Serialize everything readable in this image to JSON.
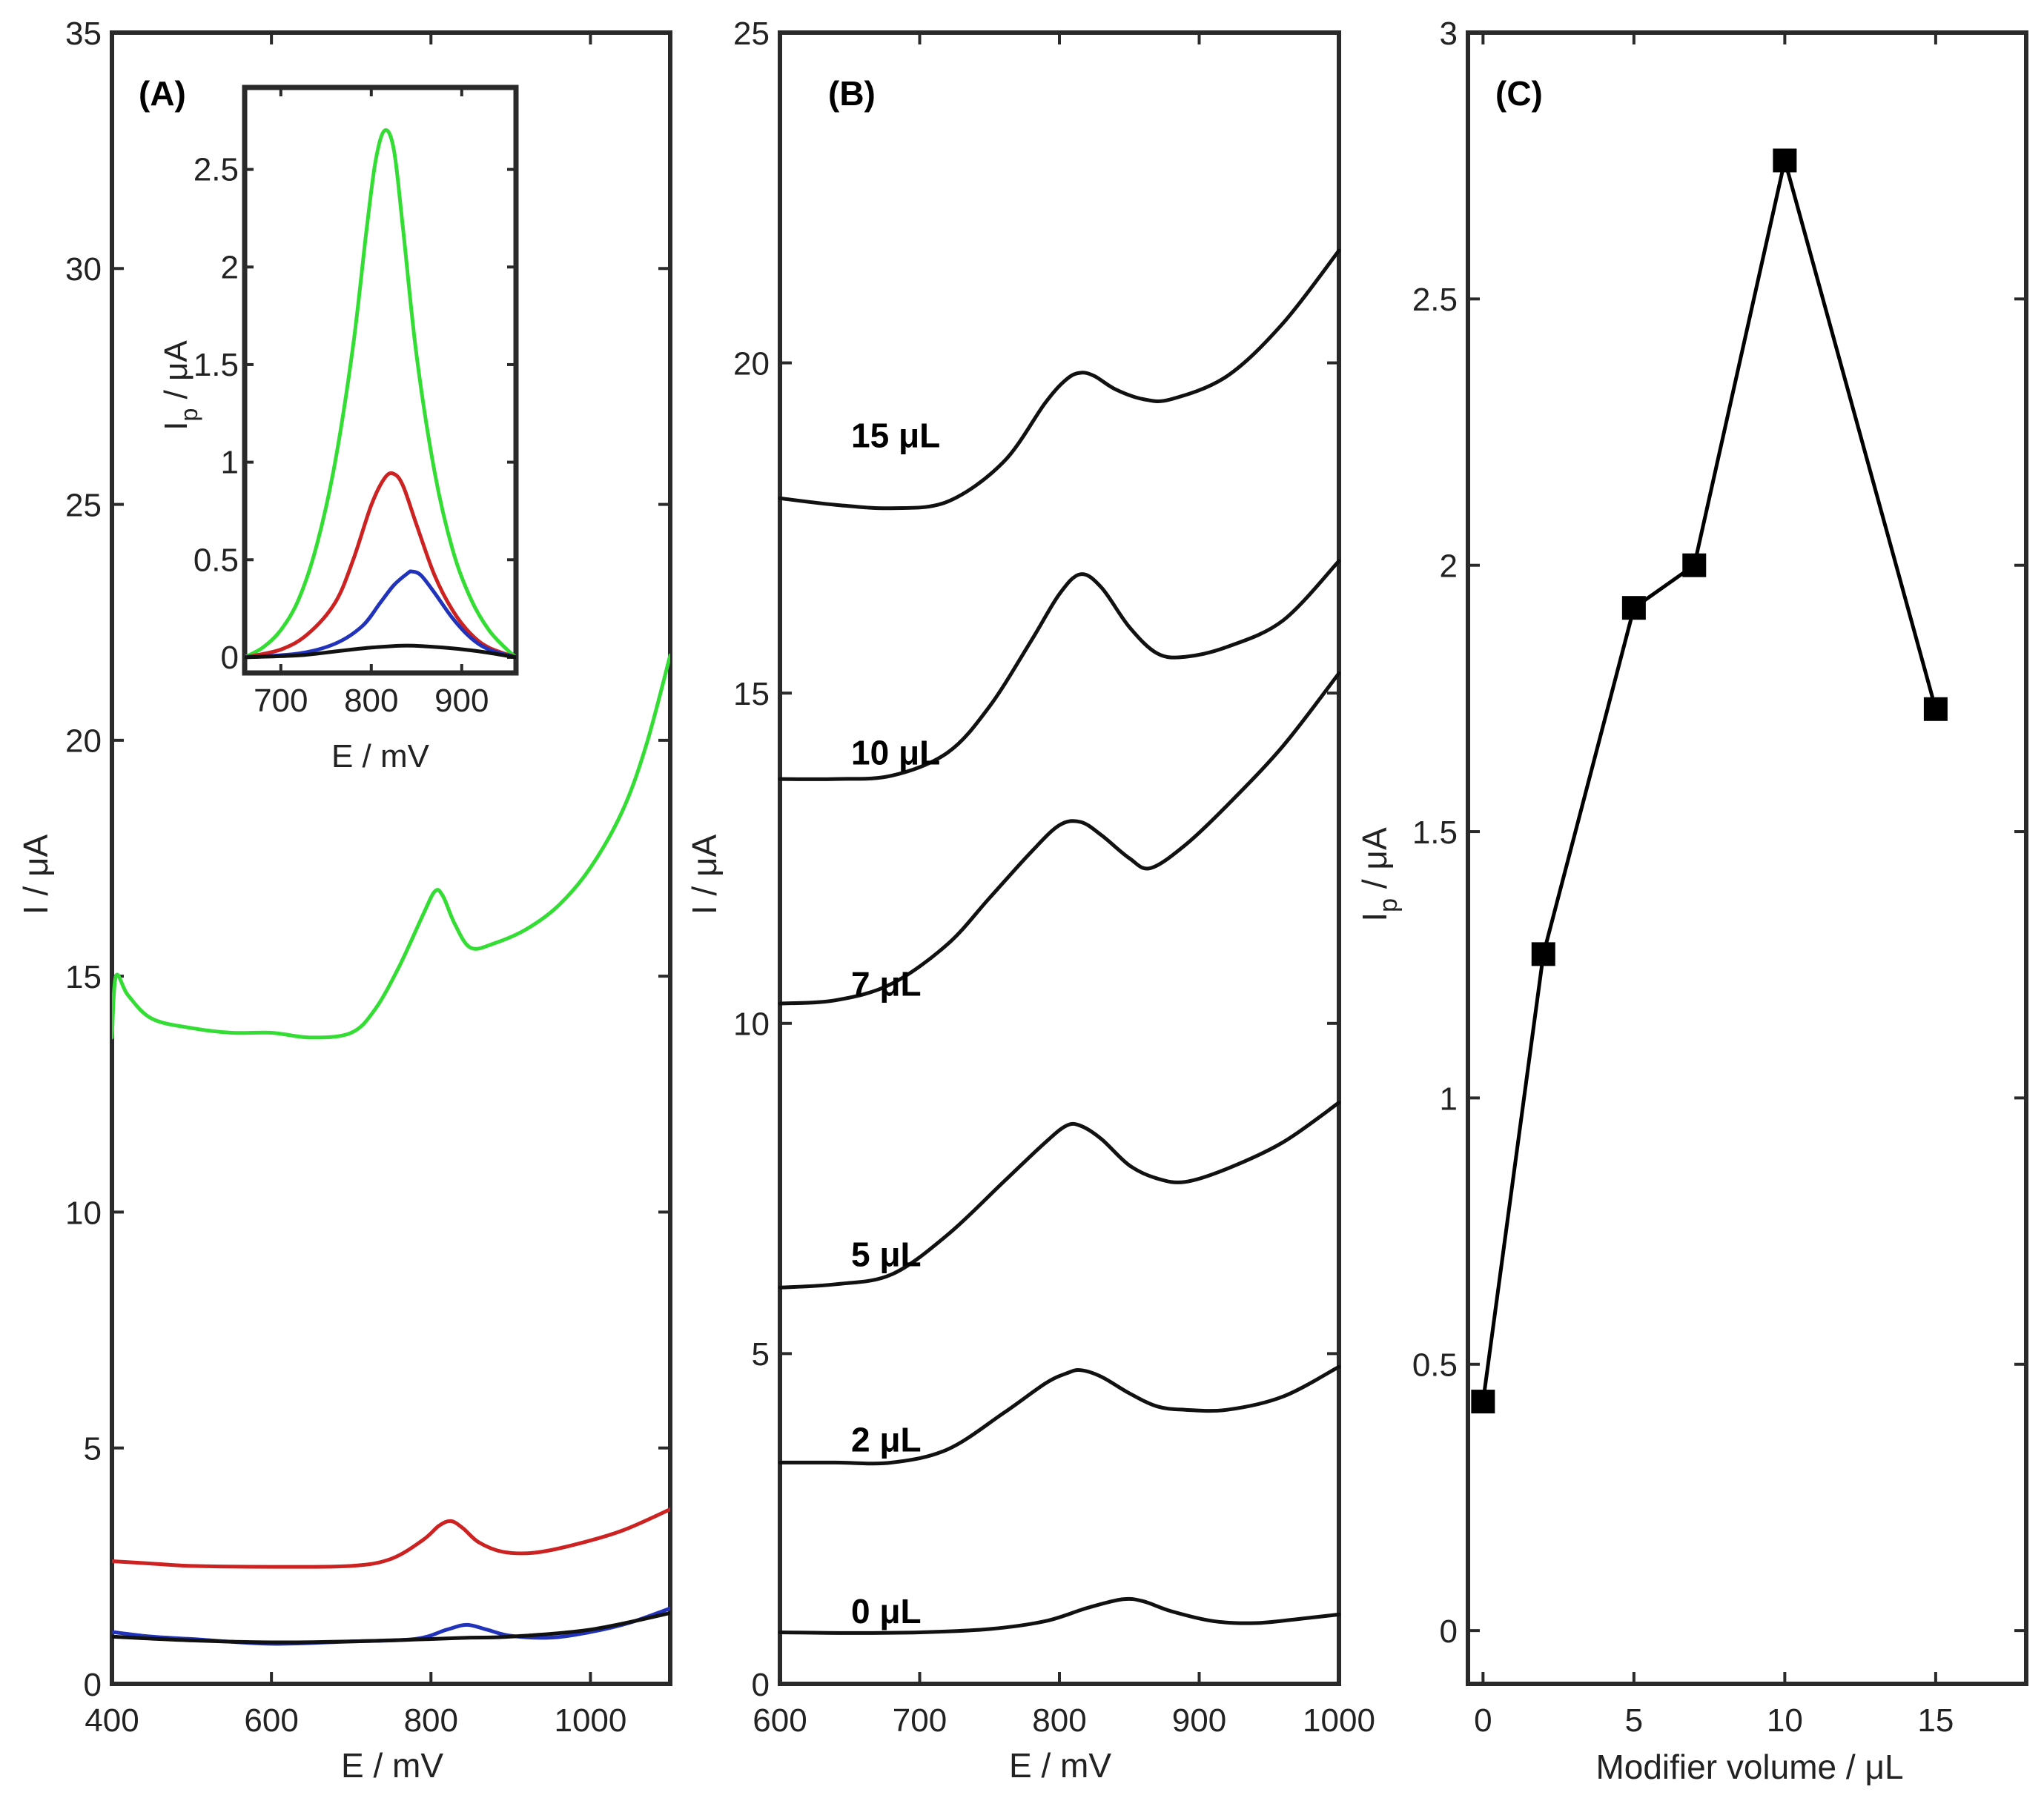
{
  "chart_data": [
    {
      "panel": "(A)",
      "type": "line",
      "xlabel": "E / mV",
      "ylabel": "I / μA",
      "xlim": [
        400,
        1100
      ],
      "ylim": [
        0,
        35
      ],
      "xticks": [
        400,
        600,
        800,
        1000
      ],
      "yticks": [
        0,
        5,
        10,
        15,
        20,
        25,
        30,
        35
      ],
      "series": [
        {
          "name": "green",
          "color": "#33dd33",
          "x": [
            400,
            405,
            420,
            450,
            500,
            550,
            600,
            650,
            700,
            730,
            760,
            790,
            805,
            815,
            830,
            850,
            880,
            920,
            960,
            1000,
            1040,
            1070,
            1100
          ],
          "y": [
            13.7,
            15.0,
            14.6,
            14.1,
            13.9,
            13.8,
            13.8,
            13.7,
            13.8,
            14.3,
            15.2,
            16.3,
            16.8,
            16.7,
            16.1,
            15.6,
            15.7,
            16.0,
            16.5,
            17.3,
            18.5,
            19.9,
            21.8
          ]
        },
        {
          "name": "red",
          "color": "#cc2222",
          "x": [
            400,
            450,
            500,
            600,
            700,
            750,
            790,
            810,
            825,
            840,
            860,
            890,
            930,
            980,
            1040,
            1100
          ],
          "y": [
            2.6,
            2.55,
            2.5,
            2.48,
            2.5,
            2.65,
            3.05,
            3.35,
            3.45,
            3.3,
            3.0,
            2.8,
            2.78,
            2.95,
            3.25,
            3.7
          ]
        },
        {
          "name": "blue",
          "color": "#2233bb",
          "x": [
            400,
            450,
            500,
            600,
            700,
            780,
            820,
            845,
            870,
            900,
            950,
            1000,
            1050,
            1100
          ],
          "y": [
            1.1,
            1.0,
            0.95,
            0.85,
            0.9,
            0.95,
            1.15,
            1.25,
            1.15,
            1.02,
            0.98,
            1.1,
            1.3,
            1.6
          ]
        },
        {
          "name": "black",
          "color": "#111111",
          "x": [
            400,
            500,
            600,
            700,
            800,
            850,
            900,
            1000,
            1100
          ],
          "y": [
            1.0,
            0.92,
            0.88,
            0.9,
            0.95,
            0.98,
            1.0,
            1.15,
            1.5
          ]
        }
      ],
      "inset": {
        "type": "line",
        "xlabel": "E / mV",
        "ylabel": "I",
        "ylabel_sub": "p",
        "ylabel_unit": " / μA",
        "xlim": [
          660,
          960
        ],
        "ylim": [
          -0.08,
          2.92
        ],
        "xticks": [
          700,
          800,
          900
        ],
        "yticks": [
          0,
          0.5,
          1,
          1.5,
          2,
          2.5
        ],
        "series": [
          {
            "name": "green",
            "color": "#33dd33",
            "x": [
              660,
              680,
              700,
              720,
              740,
              760,
              780,
              795,
              805,
              815,
              825,
              835,
              850,
              870,
              890,
              910,
              930,
              950,
              960
            ],
            "y": [
              0.0,
              0.05,
              0.14,
              0.3,
              0.58,
              1.0,
              1.6,
              2.2,
              2.55,
              2.7,
              2.6,
              2.2,
              1.55,
              0.95,
              0.55,
              0.3,
              0.14,
              0.04,
              0.0
            ]
          },
          {
            "name": "red",
            "color": "#cc2222",
            "x": [
              660,
              700,
              730,
              760,
              780,
              800,
              815,
              825,
              835,
              850,
              870,
              890,
              910,
              930,
              960
            ],
            "y": [
              0.0,
              0.04,
              0.12,
              0.28,
              0.5,
              0.78,
              0.92,
              0.94,
              0.88,
              0.68,
              0.42,
              0.24,
              0.12,
              0.05,
              0.0
            ]
          },
          {
            "name": "blue",
            "color": "#2233bb",
            "x": [
              660,
              720,
              760,
              790,
              810,
              825,
              840,
              845,
              855,
              870,
              890,
              910,
              930,
              960
            ],
            "y": [
              0.0,
              0.02,
              0.07,
              0.16,
              0.28,
              0.37,
              0.43,
              0.44,
              0.42,
              0.33,
              0.2,
              0.1,
              0.04,
              0.0
            ]
          },
          {
            "name": "black",
            "color": "#111111",
            "x": [
              660,
              720,
              760,
              800,
              840,
              880,
              920,
              960
            ],
            "y": [
              0.0,
              0.01,
              0.03,
              0.05,
              0.06,
              0.05,
              0.03,
              0.0
            ]
          }
        ]
      }
    },
    {
      "panel": "(B)",
      "type": "line",
      "xlabel": "E / mV",
      "ylabel": "I / μA",
      "xlim": [
        600,
        1000
      ],
      "ylim": [
        0,
        25
      ],
      "xticks": [
        600,
        700,
        800,
        900,
        1000
      ],
      "yticks": [
        0,
        5,
        10,
        15,
        20,
        25
      ],
      "series": [
        {
          "name": "15 μL",
          "label": "15 μL",
          "label_anchor": [
            0,
            18.9
          ],
          "x": [
            600,
            640,
            680,
            720,
            760,
            790,
            805,
            815,
            825,
            840,
            860,
            880,
            920,
            960,
            1000
          ],
          "y": [
            17.95,
            17.85,
            17.8,
            17.9,
            18.5,
            19.4,
            19.75,
            19.85,
            19.8,
            19.6,
            19.45,
            19.45,
            19.8,
            20.6,
            21.7
          ]
        },
        {
          "name": "10 μL",
          "label": "10 μL",
          "label_anchor": [
            0,
            14.1
          ],
          "x": [
            600,
            640,
            680,
            720,
            750,
            780,
            800,
            815,
            830,
            850,
            870,
            890,
            920,
            960,
            1000
          ],
          "y": [
            13.7,
            13.7,
            13.75,
            14.1,
            14.8,
            15.8,
            16.5,
            16.8,
            16.6,
            16.0,
            15.6,
            15.55,
            15.7,
            16.1,
            17.0
          ]
        },
        {
          "name": "7 μL",
          "label": "7 μL",
          "label_anchor": [
            0,
            10.6
          ],
          "x": [
            600,
            640,
            680,
            720,
            750,
            780,
            800,
            815,
            830,
            850,
            865,
            890,
            920,
            960,
            1000
          ],
          "y": [
            10.3,
            10.35,
            10.6,
            11.2,
            11.9,
            12.6,
            13.0,
            13.05,
            12.85,
            12.5,
            12.35,
            12.7,
            13.3,
            14.2,
            15.3
          ]
        },
        {
          "name": "5 μL",
          "label": "5 μL",
          "label_anchor": [
            0,
            6.5
          ],
          "x": [
            600,
            640,
            680,
            720,
            760,
            790,
            805,
            815,
            830,
            850,
            870,
            890,
            920,
            960,
            1000
          ],
          "y": [
            6.0,
            6.05,
            6.2,
            6.8,
            7.6,
            8.2,
            8.45,
            8.45,
            8.25,
            7.85,
            7.65,
            7.6,
            7.8,
            8.2,
            8.8
          ]
        },
        {
          "name": "2 μL",
          "label": "2 μL",
          "label_anchor": [
            0,
            3.7
          ],
          "x": [
            600,
            640,
            680,
            720,
            760,
            790,
            805,
            815,
            830,
            850,
            870,
            890,
            920,
            960,
            1000
          ],
          "y": [
            3.35,
            3.35,
            3.35,
            3.55,
            4.1,
            4.55,
            4.7,
            4.75,
            4.65,
            4.4,
            4.2,
            4.15,
            4.15,
            4.35,
            4.8
          ]
        },
        {
          "name": "0 μL",
          "label": "0 μL",
          "label_anchor": [
            0,
            1.1
          ],
          "x": [
            600,
            650,
            700,
            750,
            790,
            820,
            845,
            860,
            880,
            910,
            940,
            970,
            1000
          ],
          "y": [
            0.78,
            0.77,
            0.78,
            0.83,
            0.95,
            1.15,
            1.28,
            1.25,
            1.1,
            0.95,
            0.92,
            0.98,
            1.05
          ]
        }
      ]
    },
    {
      "panel": "(C)",
      "type": "line",
      "xlabel": "Modifier volume / μL",
      "ylabel": "I",
      "ylabel_sub": "p",
      "ylabel_unit": " / μA",
      "xlim": [
        -0.5,
        18
      ],
      "ylim": [
        -0.1,
        3
      ],
      "xticks": [
        0,
        5,
        10,
        15
      ],
      "yticks": [
        0,
        0.5,
        1,
        1.5,
        2,
        2.5,
        3
      ],
      "series": [
        {
          "name": "Ip",
          "color": "#000000",
          "marker": "square",
          "x": [
            0,
            2,
            5,
            7,
            10,
            15
          ],
          "y": [
            0.43,
            1.27,
            1.92,
            2.0,
            2.76,
            1.73
          ]
        }
      ]
    }
  ]
}
